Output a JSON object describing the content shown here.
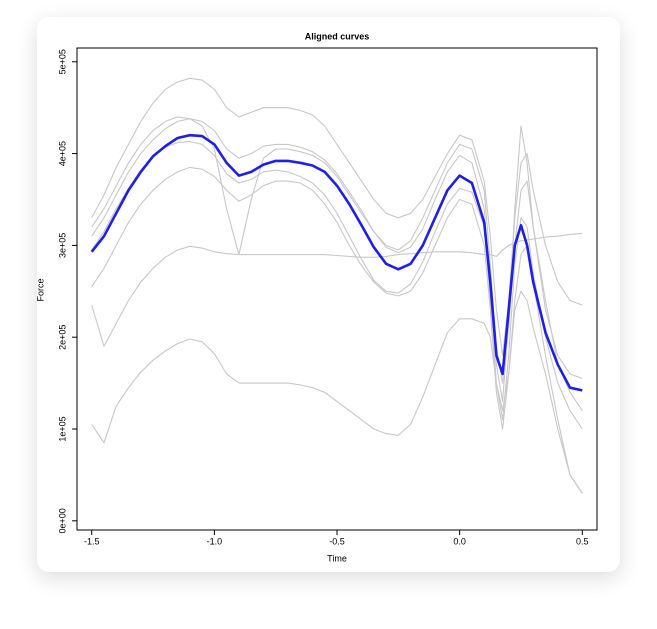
{
  "chart_data": {
    "type": "line",
    "title": "Aligned curves",
    "x_label": "Time",
    "y_label": "Force",
    "xlim": [
      -1.56,
      0.56
    ],
    "ylim": [
      -10000,
      515000
    ],
    "xticks": [
      -1.5,
      {
        "value": -1,
        "label": "-1.0"
      },
      -0.5,
      {
        "value": 0,
        "label": "0.0"
      },
      0.5
    ],
    "yticks": [
      {
        "value": 0,
        "label": "0e+00"
      },
      {
        "value": 100000,
        "label": "1e+05"
      },
      {
        "value": 200000,
        "label": "2e+05"
      },
      {
        "value": 300000,
        "label": "3e+05"
      },
      {
        "value": 400000,
        "label": "4e+05"
      },
      {
        "value": 500000,
        "label": "5e+05"
      }
    ],
    "x": [
      -1.5,
      -1.45,
      -1.4,
      -1.35,
      -1.3,
      -1.25,
      -1.2,
      -1.15,
      -1.1,
      -1.05,
      -1,
      -0.95,
      -0.9,
      -0.85,
      -0.8,
      -0.75,
      -0.7,
      -0.65,
      -0.6,
      -0.55,
      -0.5,
      -0.45,
      -0.4,
      -0.35,
      -0.3,
      -0.25,
      -0.2,
      -0.15,
      -0.1,
      -0.05,
      0,
      0.05,
      0.1,
      0.125,
      0.15,
      0.175,
      0.2,
      0.225,
      0.25,
      0.275,
      0.3,
      0.35,
      0.4,
      0.45,
      0.5
    ],
    "series": [
      {
        "color": "#c8c8c8",
        "values": [
          330000,
          355000,
          385000,
          410000,
          435000,
          455000,
          470000,
          478000,
          482000,
          480000,
          470000,
          450000,
          440000,
          445000,
          450000,
          450000,
          450000,
          447000,
          442000,
          430000,
          410000,
          390000,
          370000,
          350000,
          335000,
          330000,
          335000,
          350000,
          375000,
          400000,
          420000,
          415000,
          370000,
          310000,
          230000,
          180000,
          240000,
          330000,
          390000,
          400000,
          360000,
          300000,
          260000,
          240000,
          235000
        ]
      },
      {
        "color": "#c8c8c8",
        "values": [
          255000,
          275000,
          300000,
          325000,
          345000,
          360000,
          372000,
          380000,
          385000,
          383000,
          375000,
          360000,
          348000,
          355000,
          365000,
          370000,
          370000,
          368000,
          360000,
          345000,
          325000,
          300000,
          278000,
          260000,
          248000,
          245000,
          250000,
          270000,
          300000,
          330000,
          350000,
          345000,
          300000,
          230000,
          140000,
          100000,
          160000,
          240000,
          290000,
          300000,
          260000,
          180000,
          110000,
          50000,
          30000
        ]
      },
      {
        "color": "#c8c8c8",
        "values": [
          320000,
          340000,
          365000,
          390000,
          410000,
          425000,
          435000,
          440000,
          438000,
          430000,
          405000,
          340000,
          290000,
          350000,
          395000,
          405000,
          405000,
          402000,
          398000,
          390000,
          375000,
          355000,
          335000,
          315000,
          300000,
          295000,
          305000,
          330000,
          360000,
          390000,
          410000,
          405000,
          360000,
          280000,
          190000,
          150000,
          210000,
          300000,
          360000,
          370000,
          320000,
          230000,
          180000,
          160000,
          155000
        ]
      },
      {
        "color": "#c8c8c8",
        "values": [
          235000,
          190000,
          215000,
          240000,
          260000,
          275000,
          287000,
          295000,
          299000,
          297000,
          293000,
          291000,
          290000,
          290000,
          290000,
          290000,
          290000,
          290000,
          290000,
          290000,
          289000,
          288000,
          287000,
          287000,
          288000,
          290000,
          291000,
          292000,
          293000,
          293000,
          293000,
          292000,
          290000,
          290000,
          288000,
          295000,
          300000,
          303000,
          305000,
          306000,
          307000,
          309000,
          310000,
          312000,
          313000
        ]
      },
      {
        "color": "#c8c8c8",
        "values": [
          105000,
          85000,
          125000,
          145000,
          162000,
          175000,
          185000,
          193000,
          198000,
          195000,
          182000,
          160000,
          150000,
          150000,
          150000,
          150000,
          150000,
          148000,
          145000,
          140000,
          130000,
          120000,
          110000,
          100000,
          95000,
          93000,
          105000,
          135000,
          170000,
          205000,
          220000,
          220000,
          215000,
          200000,
          150000,
          120000,
          160000,
          230000,
          250000,
          240000,
          210000,
          160000,
          100000,
          50000,
          30000
        ]
      },
      {
        "color": "#c8c8c8",
        "values": [
          310000,
          330000,
          355000,
          380000,
          400000,
          415000,
          427000,
          435000,
          438000,
          435000,
          425000,
          405000,
          395000,
          400000,
          408000,
          410000,
          410000,
          407000,
          402000,
          393000,
          378000,
          358000,
          338000,
          315000,
          298000,
          292000,
          298000,
          318000,
          350000,
          380000,
          398000,
          390000,
          340000,
          250000,
          170000,
          130000,
          220000,
          340000,
          430000,
          390000,
          320000,
          240000,
          170000,
          140000,
          120000
        ]
      },
      {
        "color": "#c8c8c8",
        "values": [
          295000,
          315000,
          340000,
          362000,
          382000,
          397000,
          407000,
          412000,
          413000,
          410000,
          398000,
          378000,
          368000,
          372000,
          380000,
          382000,
          380000,
          375000,
          368000,
          355000,
          335000,
          310000,
          285000,
          262000,
          250000,
          248000,
          258000,
          282000,
          315000,
          345000,
          362000,
          358000,
          320000,
          240000,
          150000,
          110000,
          180000,
          280000,
          330000,
          320000,
          270000,
          200000,
          150000,
          120000,
          100000
        ]
      },
      {
        "color": "#1f1fe6",
        "values": [
          293000,
          310000,
          335000,
          360000,
          380000,
          397000,
          408000,
          417000,
          420000,
          419000,
          410000,
          390000,
          376000,
          380000,
          388000,
          392000,
          392000,
          390000,
          387000,
          380000,
          365000,
          345000,
          322000,
          298000,
          280000,
          274000,
          280000,
          300000,
          330000,
          360000,
          376000,
          368000,
          325000,
          260000,
          180000,
          160000,
          230000,
          300000,
          322000,
          300000,
          260000,
          205000,
          170000,
          145000,
          142000
        ]
      }
    ]
  }
}
